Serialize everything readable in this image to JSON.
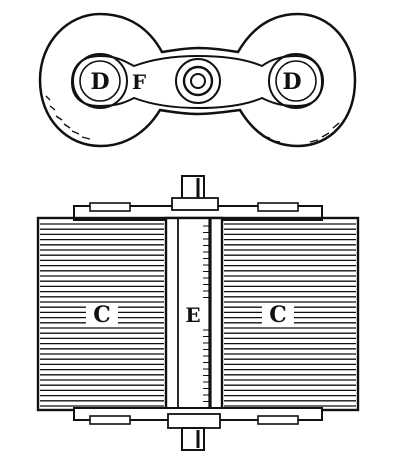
{
  "figure": {
    "top_view": {
      "label_left_pole": "D",
      "label_link": "F",
      "label_right_pole": "D"
    },
    "side_view": {
      "label_left_coil": "C",
      "label_core": "E",
      "label_right_coil": "C"
    }
  },
  "colors": {
    "ink": "#111111",
    "paper": "#ffffff"
  }
}
